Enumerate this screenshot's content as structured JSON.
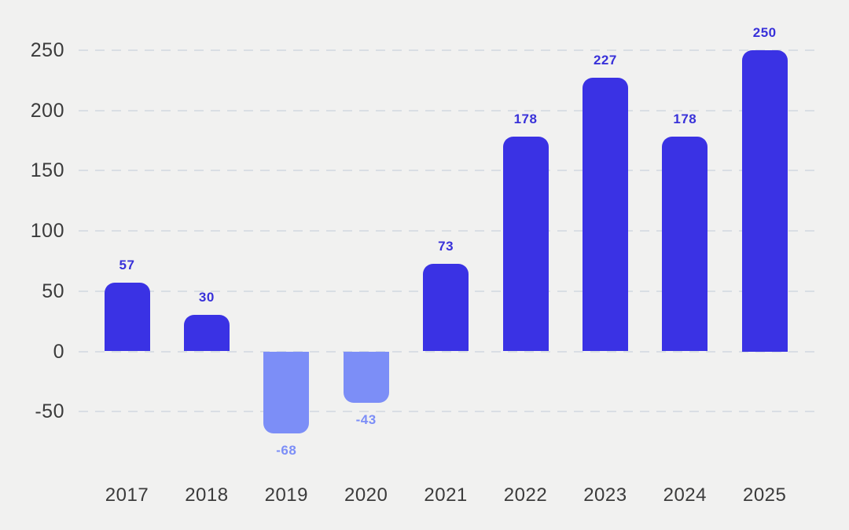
{
  "chart_data": {
    "type": "bar",
    "title": "",
    "xlabel": "",
    "ylabel": "",
    "categories": [
      "2017",
      "2018",
      "2019",
      "2020",
      "2021",
      "2022",
      "2023",
      "2024",
      "2025"
    ],
    "values": [
      57,
      30,
      -68,
      -43,
      73,
      178,
      227,
      178,
      250
    ],
    "value_labels": [
      "57",
      "30",
      "-68",
      "-43",
      "73",
      "178",
      "227",
      "178",
      "250"
    ],
    "y_ticks": [
      250,
      200,
      150,
      100,
      50,
      0,
      -50
    ],
    "y_tick_labels": [
      "250",
      "200",
      "150",
      "100",
      "50",
      "0",
      "-50"
    ],
    "ylim": [
      -50,
      250
    ],
    "grid": "horizontal-dashed",
    "legend": "none",
    "colors": {
      "background": "#f1f1f0",
      "bar_positive": "#3a32e4",
      "bar_negative": "#7c8ef7",
      "label_positive": "#3831d9",
      "label_negative": "#7c8ef7",
      "gridline": "#d9dee4",
      "axis_text": "#3b3b3b"
    }
  }
}
